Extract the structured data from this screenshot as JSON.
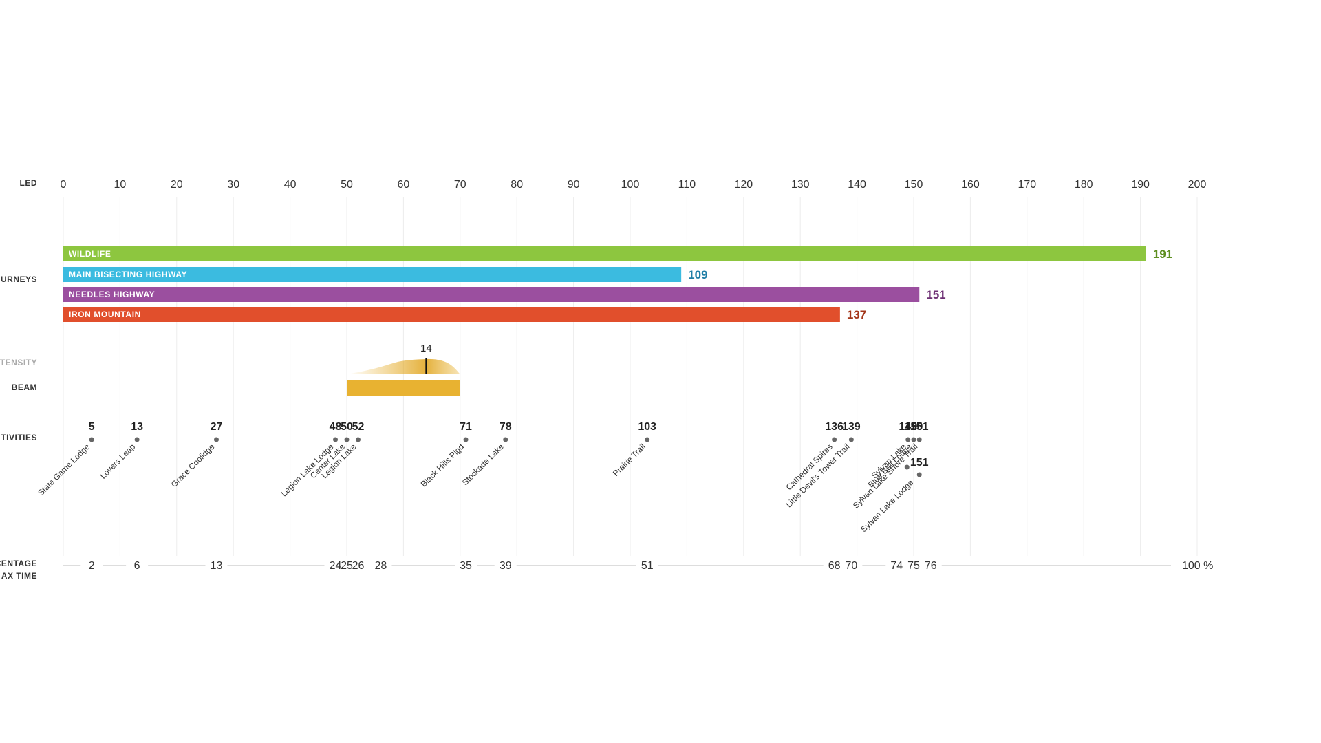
{
  "chart_data": {
    "type": "bar",
    "axis": {
      "label": "LED",
      "min": 0,
      "max": 200,
      "ticks": [
        0,
        10,
        20,
        30,
        40,
        50,
        60,
        70,
        80,
        90,
        100,
        110,
        120,
        130,
        140,
        150,
        160,
        170,
        180,
        190,
        200
      ],
      "grid": true
    },
    "journeys": {
      "label": "URNEYS",
      "series": [
        {
          "name": "WILDLIFE",
          "value": 191,
          "color": "#8dc63f",
          "value_color": "#5e8f21"
        },
        {
          "name": "MAIN BISECTING HIGHWAY",
          "value": 109,
          "color": "#3bbbe0",
          "value_color": "#1f7ea6"
        },
        {
          "name": "NEEDLES HIGHWAY",
          "value": 151,
          "color": "#9b4f9f",
          "value_color": "#6d2f73"
        },
        {
          "name": "IRON MOUNTAIN",
          "value": 137,
          "color": "#e14f2c",
          "value_color": "#a33519"
        }
      ]
    },
    "intensity": {
      "label": "TENSITY",
      "value": 14,
      "peak_at": 64,
      "range": [
        50,
        70
      ],
      "color": "#e0a31a"
    },
    "beam": {
      "label": "BEAM",
      "range": [
        50,
        70
      ],
      "color": "#e8b231"
    },
    "activities": {
      "label": "TIVITIES",
      "items": [
        {
          "value": 5,
          "name": "State Game Lodge"
        },
        {
          "value": 13,
          "name": "Lovers Leap"
        },
        {
          "value": 27,
          "name": "Grace Coolidge"
        },
        {
          "value": 48,
          "name": "Legion Lake Lodge"
        },
        {
          "value": 50,
          "name": "Center Lake"
        },
        {
          "value": 52,
          "name": "Legion Lake"
        },
        {
          "value": 71,
          "name": "Black Hills Plgd"
        },
        {
          "value": 78,
          "name": "Stockade Lake"
        },
        {
          "value": 103,
          "name": "Prairie Trail"
        },
        {
          "value": 136,
          "name": "Cathedral Spires"
        },
        {
          "value": 139,
          "name": "Little Devil's Tower Trail"
        },
        {
          "value": 149,
          "name": "Sylvan Lake"
        },
        {
          "value": 150,
          "name": "Blue Bell Lodge"
        },
        {
          "value": 151,
          "name": "Sylvan Lake Shore Trail"
        },
        {
          "value": 151,
          "name": "Sylvan Lake Lodge"
        }
      ]
    },
    "percentage": {
      "label_line1": "CENTAGE",
      "label_line2": "AX TIME",
      "marks": [
        {
          "value": 2,
          "at": 5
        },
        {
          "value": 6,
          "at": 13
        },
        {
          "value": 13,
          "at": 27
        },
        {
          "value": 24,
          "at": 48
        },
        {
          "value": 25,
          "at": 50
        },
        {
          "value": 26,
          "at": 52
        },
        {
          "value": 28,
          "at": 56
        },
        {
          "value": 35,
          "at": 71
        },
        {
          "value": 39,
          "at": 78
        },
        {
          "value": 51,
          "at": 103
        },
        {
          "value": 68,
          "at": 136
        },
        {
          "value": 70,
          "at": 139
        },
        {
          "value": 74,
          "at": 147
        },
        {
          "value": 75,
          "at": 150
        },
        {
          "value": 76,
          "at": 153
        }
      ],
      "end_label": "100 %"
    }
  }
}
